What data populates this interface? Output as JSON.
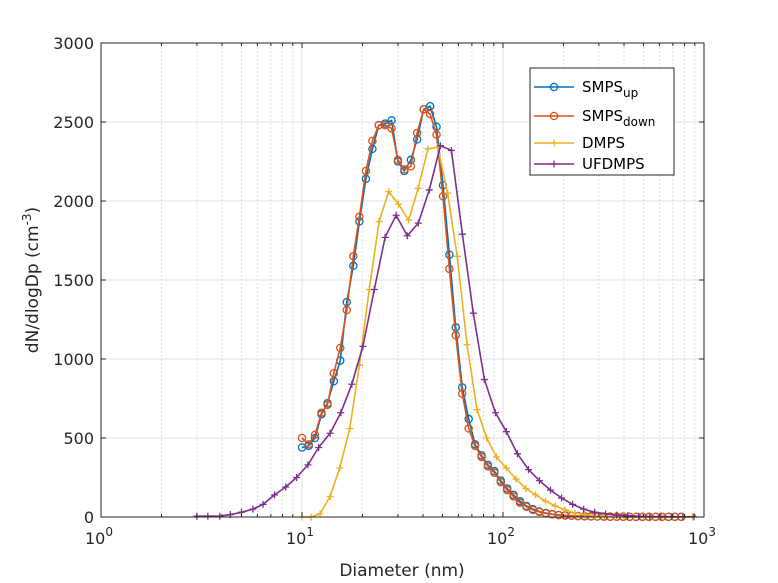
{
  "chart_data": {
    "type": "line",
    "xlabel": "Diameter (nm)",
    "ylabel": "dN/dlogDp (cm",
    "ylabel_sup": "-3",
    "ylabel_close": ")",
    "xscale": "log",
    "xlim": [
      1,
      1000
    ],
    "ylim": [
      0,
      3000
    ],
    "yticks": [
      0,
      500,
      1000,
      1500,
      2000,
      2500,
      3000
    ],
    "ytick_labels": [
      "0",
      "500",
      "1000",
      "1500",
      "2000",
      "2500",
      "3000"
    ],
    "xticks": [
      {
        "base": "10",
        "exp": "0",
        "value": 1
      },
      {
        "base": "10",
        "exp": "1",
        "value": 10
      },
      {
        "base": "10",
        "exp": "2",
        "value": 100
      },
      {
        "base": "10",
        "exp": "3",
        "value": 1000
      }
    ],
    "grid": true,
    "legend_position": "top-right",
    "series": [
      {
        "name": "SMPS",
        "name_sub": "up",
        "color": "#0072BD",
        "marker": "circle",
        "x": [
          10,
          10.8,
          11.6,
          12.5,
          13.4,
          14.4,
          15.5,
          16.7,
          18.0,
          19.3,
          20.8,
          22.4,
          24.1,
          25.9,
          27.9,
          30.0,
          32.3,
          34.8,
          37.4,
          40.3,
          43.4,
          46.7,
          50.3,
          54.1,
          58.2,
          62.7,
          67.5,
          72.6,
          78.2,
          84.2,
          90.6,
          97.5,
          104.9,
          112.9,
          121.5,
          130.8,
          140.8,
          151.6,
          163.3,
          175.8,
          189.2,
          203.7,
          219.4,
          236.2,
          254.4,
          273.8,
          294.8,
          317.5,
          341.8,
          368.2,
          396.4,
          426.8,
          459.6,
          494.9,
          532.8,
          573.8,
          617.8,
          665.3,
          716.3,
          771.5
        ],
        "y": [
          440,
          450,
          500,
          650,
          720,
          860,
          990,
          1360,
          1590,
          1870,
          2140,
          2330,
          2480,
          2490,
          2510,
          2250,
          2190,
          2260,
          2390,
          2580,
          2600,
          2470,
          2100,
          1660,
          1200,
          820,
          620,
          460,
          390,
          330,
          290,
          230,
          180,
          140,
          100,
          70,
          50,
          35,
          25,
          18,
          13,
          10,
          8,
          6,
          5,
          4,
          3,
          3,
          2,
          2,
          2,
          1,
          1,
          1,
          1,
          1,
          1,
          1,
          1,
          1
        ]
      },
      {
        "name": "SMPS",
        "name_sub": "down",
        "color": "#D95319",
        "marker": "circle",
        "x": [
          10,
          10.8,
          11.6,
          12.5,
          13.4,
          14.4,
          15.5,
          16.7,
          18.0,
          19.3,
          20.8,
          22.4,
          24.1,
          25.9,
          27.9,
          30.0,
          32.3,
          34.8,
          37.4,
          40.3,
          43.4,
          46.7,
          50.3,
          54.1,
          58.2,
          62.7,
          67.5,
          72.6,
          78.2,
          84.2,
          90.6,
          97.5,
          104.9,
          112.9,
          121.5,
          130.8,
          140.8,
          151.6,
          163.3,
          175.8,
          189.2,
          203.7,
          219.4,
          236.2,
          254.4,
          273.8,
          294.8,
          317.5,
          341.8,
          368.2,
          396.4,
          426.8,
          459.6,
          494.9,
          532.8,
          573.8,
          617.8,
          665.3,
          716.3,
          771.5
        ],
        "y": [
          500,
          460,
          520,
          660,
          710,
          910,
          1070,
          1310,
          1650,
          1900,
          2190,
          2380,
          2480,
          2480,
          2460,
          2260,
          2200,
          2220,
          2430,
          2580,
          2550,
          2420,
          2030,
          1570,
          1150,
          780,
          560,
          450,
          380,
          320,
          280,
          220,
          170,
          130,
          90,
          65,
          45,
          32,
          23,
          17,
          12,
          9,
          7,
          5,
          4,
          3,
          3,
          2,
          2,
          2,
          1,
          1,
          1,
          1,
          1,
          1,
          1,
          1,
          1,
          1
        ]
      },
      {
        "name": "DMPS",
        "color": "#EDB120",
        "marker": "plus",
        "x": [
          10,
          11.1,
          12.3,
          13.8,
          15.4,
          17.3,
          19.3,
          21.6,
          24.2,
          27.0,
          30.2,
          33.9,
          37.8,
          42.3,
          47.4,
          53.0,
          59.2,
          66.3,
          74.2,
          83.0,
          92.8,
          103.8,
          116.1,
          130.0,
          145.4,
          162.7,
          182.0,
          203.6,
          227.8,
          254.9,
          285.2,
          319.1,
          357.0,
          399.4,
          446.9,
          500.0,
          559.4,
          625.9,
          700.3,
          783.6,
          876.7
        ],
        "y": [
          0,
          0,
          20,
          130,
          310,
          560,
          960,
          1440,
          1870,
          2060,
          1980,
          1880,
          2080,
          2330,
          2340,
          2050,
          1650,
          1090,
          680,
          500,
          380,
          310,
          240,
          180,
          140,
          100,
          70,
          45,
          25,
          15,
          10,
          6,
          4,
          3,
          2,
          2,
          1,
          1,
          1,
          1,
          1
        ]
      },
      {
        "name": "UFDMPS",
        "color": "#7E2F8E",
        "marker": "plus",
        "x": [
          3.0,
          3.4,
          3.9,
          4.4,
          5.0,
          5.7,
          6.4,
          7.3,
          8.3,
          9.4,
          10.7,
          12.1,
          13.8,
          15.6,
          17.7,
          20.1,
          22.9,
          25.9,
          29.4,
          33.4,
          37.9,
          43.0,
          48.8,
          55.4,
          62.8,
          71.2,
          80.8,
          91.7,
          104.0,
          118.0,
          133.9,
          151.9,
          172.4,
          195.6,
          222.0,
          251.9,
          285.8,
          324.3,
          368.0,
          417.5,
          473.8,
          537.6,
          610.0,
          692.2,
          785.4,
          891.2
        ],
        "y": [
          5,
          5,
          5,
          15,
          30,
          50,
          80,
          140,
          190,
          250,
          330,
          440,
          530,
          660,
          840,
          1080,
          1440,
          1770,
          1910,
          1780,
          1860,
          2070,
          2350,
          2320,
          1790,
          1290,
          870,
          660,
          540,
          400,
          300,
          230,
          170,
          120,
          80,
          50,
          30,
          20,
          12,
          8,
          5,
          3,
          2,
          2,
          1,
          1
        ]
      }
    ]
  }
}
